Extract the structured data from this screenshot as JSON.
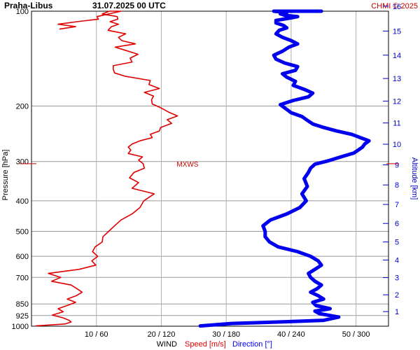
{
  "header": {
    "station": "Praha-Libus",
    "datetime": "31.07.2025 00 UTC",
    "credit": "CHMI © 2025"
  },
  "footer": {
    "wind_label": "WIND",
    "speed_label": "Speed [m/s]",
    "direction_label": "Direction [°]"
  },
  "colors": {
    "speed": "#e00000",
    "direction": "#0000ee",
    "grid": "#999999",
    "credit": "#cc0000",
    "altitude": "#0000cc"
  },
  "chart_data": {
    "type": "line",
    "title": "Praha-Libus 31.07.2025 00 UTC",
    "ylabel": "Pressure [hPa]",
    "y2label": "Altitude [km]",
    "xlabel": "WIND",
    "y_scale": "log",
    "ylim": [
      1000,
      100
    ],
    "yticks": [
      100,
      200,
      300,
      400,
      500,
      600,
      700,
      850,
      925,
      1000
    ],
    "speed_xlim": [
      0,
      55
    ],
    "direction_xlim": [
      0,
      330
    ],
    "xticks": [
      {
        "speed": 10,
        "direction": 60,
        "label": "10 / 60"
      },
      {
        "speed": 20,
        "direction": 120,
        "label": "20 / 120"
      },
      {
        "speed": 30,
        "direction": 180,
        "label": "30 / 180"
      },
      {
        "speed": 40,
        "direction": 240,
        "label": "40 / 240"
      },
      {
        "speed": 50,
        "direction": 300,
        "label": "50 / 300"
      }
    ],
    "altitude_ticks_km": [
      1,
      2,
      3,
      4,
      5,
      6,
      7,
      8,
      9,
      10,
      11,
      12,
      13,
      14,
      15,
      16
    ],
    "annotation": {
      "label": "MXWS",
      "pressure": 305
    },
    "series": [
      {
        "name": "Speed [m/s]",
        "x": [
          0.6,
          5.2,
          6.1,
          5.8,
          4.8,
          3.2,
          4.9,
          4.1,
          5.6,
          6.8,
          5.5,
          6.9,
          7.8,
          7.0,
          6.1,
          3.1,
          4.5,
          2.6,
          7.3,
          9.9,
          9.3,
          10.2,
          9.4,
          9.8,
          10.9,
          11.0,
          11.9,
          12.8,
          13.8,
          15.5,
          16.7,
          17.3,
          18.9,
          15.5,
          16.5,
          15.1,
          15.8,
          17.4,
          17.2,
          16.5,
          17.1,
          14.9,
          15.3,
          14.9,
          15.5,
          16.7,
          18.6,
          18.3,
          19.7,
          19.9,
          21.6,
          20.9,
          22.5,
          21.1,
          20.0,
          18.6,
          18.5,
          18.8,
          17.4,
          19.7,
          18.1,
          18.3,
          14.5,
          12.8,
          12.6,
          12.6,
          15.5,
          15.2,
          16.4,
          14.4,
          12.9,
          16.0,
          13.9,
          13.4,
          14.5,
          11.8,
          12.3,
          13.4,
          12.1,
          13.3,
          13.2,
          10.9,
          12.0,
          13.8,
          11.9,
          10.1,
          10.3,
          7.0,
          4.1,
          6.8,
          4.3
        ],
        "pressure": [
          998,
          984,
          970,
          958,
          940,
          922,
          900,
          880,
          858,
          840,
          820,
          800,
          780,
          760,
          740,
          720,
          700,
          680,
          660,
          640,
          620,
          600,
          580,
          560,
          540,
          520,
          500,
          480,
          460,
          440,
          420,
          400,
          380,
          365,
          350,
          338,
          325,
          315,
          305,
          297,
          290,
          283,
          276,
          270,
          264,
          258,
          252,
          246,
          240,
          234,
          227,
          221,
          215,
          209,
          203,
          197,
          191,
          186,
          181,
          176,
          171,
          166,
          161,
          157,
          153,
          149,
          145,
          141,
          137,
          133,
          130,
          127,
          124,
          121,
          118,
          115,
          112,
          110,
          108,
          106,
          104,
          102,
          100,
          100,
          102,
          104,
          106,
          108,
          110,
          112,
          114
        ]
      },
      {
        "name": "Direction [°]",
        "x": [
          156,
          185,
          235,
          270,
          284,
          266,
          262,
          276,
          263,
          260,
          270,
          265,
          258,
          264,
          268,
          262,
          258,
          256,
          262,
          268,
          265,
          258,
          246,
          228,
          220,
          216,
          216,
          214,
          221,
          236,
          248,
          254,
          250,
          255,
          252,
          256,
          258,
          262,
          275,
          286,
          298,
          302,
          306,
          308,
          312,
          304,
          296,
          282,
          270,
          260,
          255,
          250,
          240,
          235,
          230,
          242,
          256,
          260,
          252,
          242,
          244,
          236,
          232,
          244,
          246,
          234,
          226,
          224,
          232,
          238,
          246,
          240,
          232,
          226,
          229,
          236,
          233,
          226,
          226,
          240,
          246,
          234,
          230,
          236,
          224,
          238,
          248,
          264,
          268,
          260,
          258
        ],
        "pressure": [
          998,
          980,
          968,
          958,
          935,
          912,
          896,
          880,
          860,
          840,
          820,
          800,
          780,
          760,
          740,
          720,
          700,
          680,
          660,
          640,
          620,
          600,
          580,
          560,
          540,
          520,
          500,
          480,
          460,
          440,
          420,
          400,
          380,
          360,
          340,
          325,
          315,
          306,
          298,
          290,
          282,
          276,
          270,
          264,
          258,
          252,
          246,
          240,
          234,
          228,
          222,
          216,
          210,
          204,
          198,
          192,
          187,
          182,
          177,
          172,
          167,
          162,
          158,
          154,
          150,
          146,
          142,
          138,
          134,
          130,
          127,
          124,
          121,
          118,
          115,
          113,
          111,
          109,
          107,
          105,
          104,
          103,
          102,
          101,
          100,
          100,
          100,
          100,
          100,
          100,
          100
        ]
      }
    ]
  }
}
